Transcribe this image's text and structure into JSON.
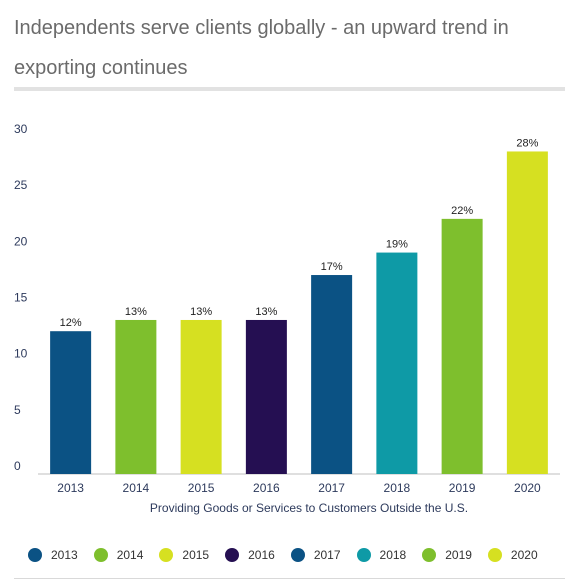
{
  "title_line1": "Independents serve clients globally - an upward trend in",
  "title_line2": "exporting continues",
  "chart_data": {
    "type": "bar",
    "categories": [
      "2013",
      "2014",
      "2015",
      "2016",
      "2017",
      "2018",
      "2019",
      "2020"
    ],
    "values": [
      12,
      13,
      13,
      13,
      17,
      19,
      22,
      28
    ],
    "value_labels": [
      "12%",
      "13%",
      "13%",
      "13%",
      "17%",
      "19%",
      "22%",
      "28%"
    ],
    "colors": [
      "#0b5284",
      "#7ebf2d",
      "#d6e021",
      "#250f52",
      "#0b5284",
      "#0e9aa6",
      "#7ebf2d",
      "#d6e021"
    ],
    "title": "Independents serve clients globally - an upward trend in exporting continues",
    "xlabel": "Providing Goods or Services to Customers Outside the U.S.",
    "ylabel": "",
    "ylim": [
      0,
      30
    ],
    "yticks": [
      0,
      5,
      10,
      15,
      20,
      25,
      30
    ],
    "grid": false,
    "legend_position": "bottom",
    "legend": [
      {
        "label": "2013",
        "color": "#0b5284"
      },
      {
        "label": "2014",
        "color": "#7ebf2d"
      },
      {
        "label": "2015",
        "color": "#d6e021"
      },
      {
        "label": "2016",
        "color": "#250f52"
      },
      {
        "label": "2017",
        "color": "#0b5284"
      },
      {
        "label": "2018",
        "color": "#0e9aa6"
      },
      {
        "label": "2019",
        "color": "#7ebf2d"
      },
      {
        "label": "2020",
        "color": "#d6e021"
      }
    ]
  }
}
